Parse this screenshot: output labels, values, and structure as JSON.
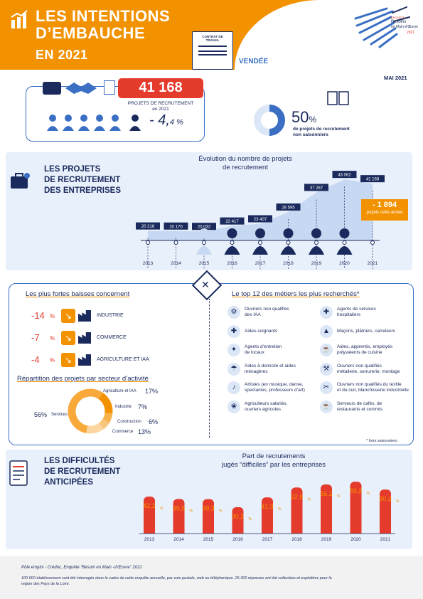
{
  "header": {
    "title_line1": "LES INTENTIONS",
    "title_line2": "D’EMBAUCHE",
    "title_line3": "EN 2021",
    "contract_label": "CONTRAT DE TRAVAIL",
    "region": "VENDÉE",
    "date": "MAI 2021",
    "logo_line1": "ENQUÊTE",
    "logo_line2": "Besoins",
    "logo_line3": "en Main-d’Œuvre",
    "logo_year": "2021"
  },
  "summary": {
    "projects_value": "41 168",
    "projects_label_1": "PROJETS DE RECRUTEMENT",
    "projects_label_2": "en 2021",
    "change_value": "- 4,",
    "change_decimal": "4 %",
    "nonseasonal_pct": "50",
    "nonseasonal_pct_sign": "%",
    "nonseasonal_label_1": "de projets de recrutement",
    "nonseasonal_label_2": "non saisonniers"
  },
  "projects_section": {
    "title_1": "LES PROJETS",
    "title_2": "DE RECRUTEMENT",
    "title_3": "DES ENTREPRISES",
    "chart_title_1": "Évolution du nombre de projets",
    "chart_title_2": "de recrutement",
    "delta_value": "- 1 894",
    "delta_label": "projets cette année"
  },
  "sectors": {
    "baisses_title": "Les plus fortes baisses concernent",
    "baisses": [
      {
        "pct": "-14",
        "sign": "%",
        "label": "INDUSTRIE"
      },
      {
        "pct": "-7",
        "sign": "%",
        "label": "COMMERCE"
      },
      {
        "pct": "-4",
        "sign": "%",
        "label": "AGRICULTURE ET IAA"
      }
    ],
    "repartition_title": "Répartition des projets par secteur d’activité",
    "repartition": [
      {
        "label": "Agriculture et IAA",
        "value": "17%"
      },
      {
        "label": "Industrie",
        "value": "7%"
      },
      {
        "label": "Construction",
        "value": "6%"
      },
      {
        "label": "Commerce",
        "value": "13%"
      },
      {
        "label": "Services",
        "value": "56%"
      }
    ]
  },
  "top12": {
    "title": "Le top 12 des métiers les plus recherchés*",
    "left": [
      {
        "l1": "Ouvriers non qualifiés",
        "l2": "des IAA"
      },
      {
        "l1": "Aides-soignants",
        "l2": ""
      },
      {
        "l1": "Agents d’entretien",
        "l2": "de locaux"
      },
      {
        "l1": "Aides à domicile et aides",
        "l2": "ménagères"
      },
      {
        "l1": "Artistes (en musique, danse,",
        "l2": "spectacles, professeurs d’art)"
      },
      {
        "l1": "Agriculteurs salariés,",
        "l2": "ouvriers agricoles"
      }
    ],
    "right": [
      {
        "l1": "Agents de services",
        "l2": "hospitaliers"
      },
      {
        "l1": "Maçons, plâtriers, carreleurs",
        "l2": ""
      },
      {
        "l1": "Aides, apprentis, employés",
        "l2": "polyvalents de cuisine"
      },
      {
        "l1": "Ouvriers non qualifiés",
        "l2": "métallerie, serrurerie, montage"
      },
      {
        "l1": "Ouvriers non qualifiés du textile",
        "l2": "et du cuir, blanchisserie industrielle"
      },
      {
        "l1": "Serveurs de cafés, de",
        "l2": "restaurants et commis"
      }
    ],
    "footnote": "* hors saisonniers"
  },
  "difficulty": {
    "title_1": "LES DIFFICULTÉS",
    "title_2": "DE RECRUTEMENT",
    "title_3": "ANTICIPÉES",
    "chart_title_1": "Part de recrutements",
    "chart_title_2": "jugés “difficiles” par les entreprises"
  },
  "footer": {
    "source": "Pôle emploi - Crédoc, Enquête “Besoin en Main -d’Œuvre” 2021",
    "note_1": "100 000 établissement sont été interrogés dans le cadre de cette enquête annuelle,  par voie postale, web ou téléphonique.  25 300 réponses ont été collectées et exploitées pour la",
    "note_2": "region des Pays de la Loire."
  },
  "chart_data": [
    {
      "type": "area",
      "title": "Évolution du nombre de projets de recrutement",
      "x": [
        "2013",
        "2014",
        "2015",
        "2016",
        "2017",
        "2018",
        "2019",
        "2020",
        "2021"
      ],
      "values": [
        20216,
        20170,
        20032,
        22417,
        23407,
        28595,
        37287,
        43062,
        41168
      ],
      "labels": [
        "20 216",
        "20 170",
        "20 032",
        "22 417",
        "23 407",
        "28 595",
        "37 287",
        "43 062",
        "41 168"
      ]
    },
    {
      "type": "donut",
      "title": "Répartition des projets par secteur d’activité",
      "categories": [
        "Agriculture et IAA",
        "Industrie",
        "Construction",
        "Commerce",
        "Services"
      ],
      "values": [
        17,
        7,
        6,
        13,
        56
      ]
    },
    {
      "type": "bar",
      "title": "Part de recrutements jugés “difficiles” par les entreprises",
      "categories": [
        "2013",
        "2014",
        "2015",
        "2016",
        "2017",
        "2018",
        "2019",
        "2020",
        "2021"
      ],
      "values": [
        42.2,
        39.5,
        39.3,
        30.2,
        41.3,
        52.6,
        56.1,
        59.2,
        50.3
      ],
      "labels": [
        "42,2",
        "39,5",
        "39,3",
        "30,2",
        "41,3",
        "52,6",
        "56,1",
        "59,2",
        "50,3"
      ]
    }
  ]
}
